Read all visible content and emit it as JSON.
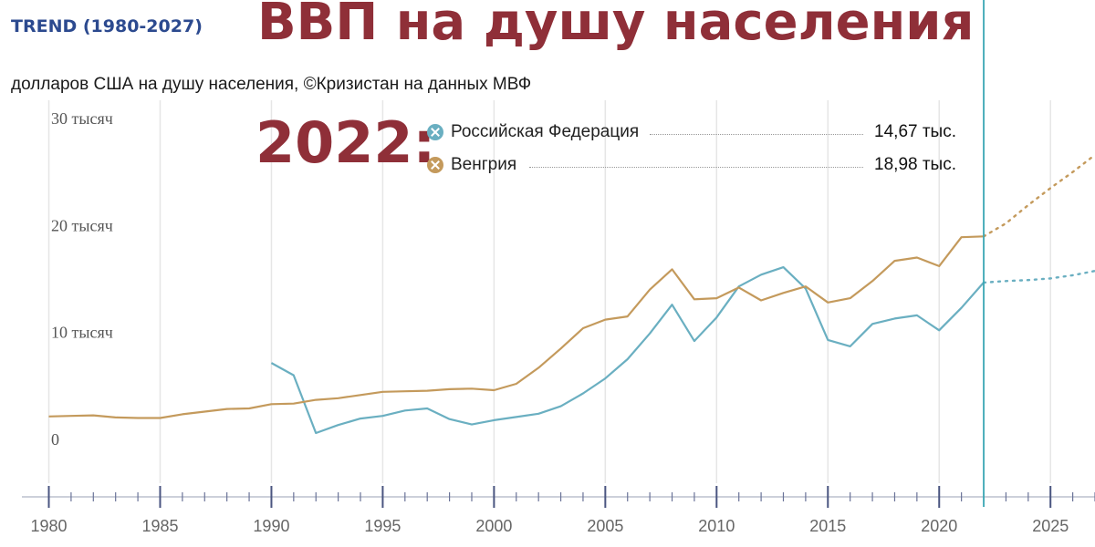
{
  "header": {
    "trend_label": "TREND (1980-2027)",
    "title": "ВВП на душу населения",
    "subtitle": "долларов США на душу населения, ©Кризистан на данных МВФ"
  },
  "highlight": {
    "year_label": "2022:",
    "entries": [
      {
        "name": "Российская Федерация",
        "value": "14,67 тыс.",
        "color": "#6aafc1"
      },
      {
        "name": "Венгрия",
        "value": "18,98 тыс.",
        "color": "#c49a5c"
      }
    ]
  },
  "chart_data": {
    "type": "line",
    "xlim": [
      1979.2,
      2027
    ],
    "ylim": [
      0,
      30000
    ],
    "y_ticks": [
      {
        "value": 30000,
        "label": "30 тысяч"
      },
      {
        "value": 20000,
        "label": "20 тысяч"
      },
      {
        "value": 10000,
        "label": "10 тысяч"
      },
      {
        "value": 0,
        "label": "0"
      }
    ],
    "x_ticks": [
      1980,
      1985,
      1990,
      1995,
      2000,
      2005,
      2010,
      2015,
      2020,
      2025
    ],
    "x_tick_labels": [
      "1980",
      "1985",
      "1990",
      "1995",
      "2000",
      "2005",
      "2010",
      "2015",
      "2020",
      "2025"
    ],
    "highlight_year": 2022,
    "grid": "vertical",
    "legend": "top",
    "series": [
      {
        "name": "Российская Федерация",
        "color": "#6aafc1",
        "x": [
          1990,
          1991,
          1992,
          1993,
          1994,
          1995,
          1996,
          1997,
          1998,
          1999,
          2000,
          2001,
          2002,
          2003,
          2004,
          2005,
          2006,
          2007,
          2008,
          2009,
          2010,
          2011,
          2012,
          2013,
          2014,
          2015,
          2016,
          2017,
          2018,
          2019,
          2020,
          2021,
          2022
        ],
        "y": [
          7150,
          6000,
          600,
          1350,
          1950,
          2200,
          2700,
          2900,
          1900,
          1400,
          1800,
          2100,
          2400,
          3100,
          4300,
          5700,
          7500,
          9900,
          12600,
          9200,
          11400,
          14300,
          15400,
          16100,
          14100,
          9300,
          8700,
          10800,
          11300,
          11600,
          10200,
          12300,
          14670
        ]
      },
      {
        "name": "Венгрия",
        "color": "#c49a5c",
        "x": [
          1980,
          1981,
          1982,
          1983,
          1984,
          1985,
          1986,
          1987,
          1988,
          1989,
          1990,
          1991,
          1992,
          1993,
          1994,
          1995,
          1996,
          1997,
          1998,
          1999,
          2000,
          2001,
          2002,
          2003,
          2004,
          2005,
          2006,
          2007,
          2008,
          2009,
          2010,
          2011,
          2012,
          2013,
          2014,
          2015,
          2016,
          2017,
          2018,
          2019,
          2020,
          2021,
          2022
        ],
        "y": [
          2150,
          2200,
          2250,
          2050,
          2000,
          2000,
          2350,
          2600,
          2850,
          2900,
          3300,
          3350,
          3700,
          3850,
          4150,
          4450,
          4500,
          4550,
          4700,
          4750,
          4600,
          5200,
          6700,
          8500,
          10400,
          11200,
          11500,
          14000,
          15900,
          13100,
          13200,
          14200,
          13000,
          13700,
          14300,
          12800,
          13200,
          14800,
          16700,
          17000,
          16200,
          18900,
          18980
        ]
      }
    ],
    "forecast": [
      {
        "name": "Российская Федерация",
        "color": "#6aafc1",
        "x": [
          2022,
          2023,
          2024,
          2025,
          2026,
          2027
        ],
        "y": [
          14670,
          14800,
          14900,
          15050,
          15350,
          15750
        ]
      },
      {
        "name": "Венгрия",
        "color": "#c49a5c",
        "x": [
          2022,
          2023,
          2024,
          2025,
          2026,
          2027
        ],
        "y": [
          18980,
          20200,
          21900,
          23500,
          25000,
          26600
        ]
      }
    ]
  }
}
